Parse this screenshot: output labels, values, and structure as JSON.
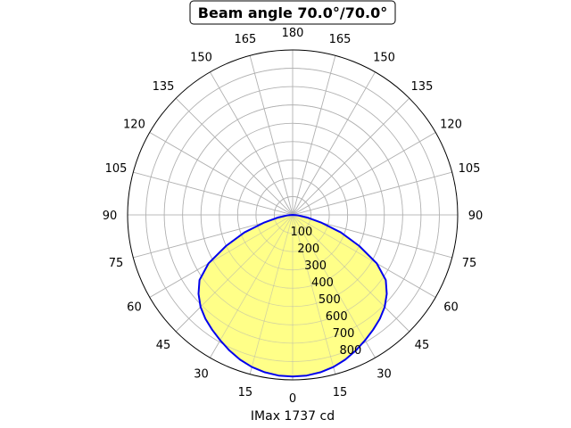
{
  "chart_data": {
    "type": "polar-area",
    "title": "Beam angle 70.0°/70.0°",
    "xlabel": "IMax 1737 cd",
    "angle_ticks": [
      "0",
      "15",
      "30",
      "45",
      "60",
      "75",
      "90",
      "105",
      "120",
      "135",
      "150",
      "165",
      "180",
      "165",
      "150",
      "135",
      "120",
      "105",
      "90",
      "75",
      "60",
      "45",
      "30",
      "15"
    ],
    "radial_ticks": [
      "100",
      "200",
      "300",
      "400",
      "500",
      "600",
      "700",
      "800"
    ],
    "rlim": [
      0,
      900
    ],
    "grid": true,
    "colors": {
      "line": "#0000ee",
      "fill": "#ffff88",
      "grid": "#b0b0b0"
    },
    "series": [
      {
        "angle_deg": [
          0,
          5,
          10,
          15,
          20,
          25,
          30,
          35,
          40,
          45,
          50,
          55,
          60,
          65,
          70,
          75,
          80,
          85,
          90
        ],
        "values": [
          882,
          880,
          872,
          859,
          840,
          816,
          790,
          765,
          740,
          710,
          670,
          620,
          530,
          400,
          280,
          160,
          80,
          30,
          0
        ]
      }
    ]
  }
}
